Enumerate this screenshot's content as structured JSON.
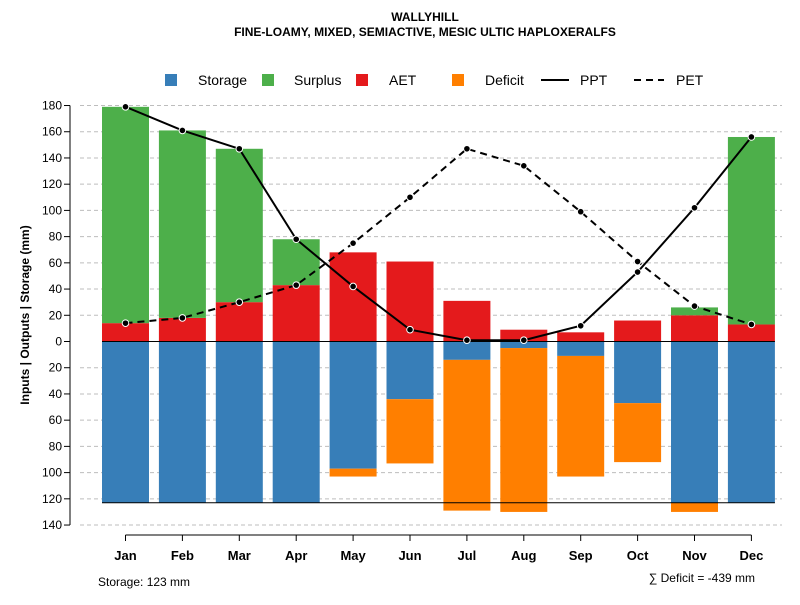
{
  "colors": {
    "storage": "#377eb8",
    "surplus": "#4daf4a",
    "aet": "#e41a1c",
    "deficit": "#ff7f00",
    "line": "#000000",
    "grid": "#bdbdbd"
  },
  "chart_data": {
    "type": "water-balance (stacked bar + line)",
    "title": "WALLYHILL",
    "subtitle": "FINE-LOAMY, MIXED, SEMIACTIVE, MESIC ULTIC HAPLOXERALFS",
    "ylabel": "Inputs | Outputs | Storage    (mm)",
    "ylim": [
      -140,
      180
    ],
    "yticks": [
      180,
      160,
      140,
      120,
      100,
      80,
      60,
      40,
      20,
      0,
      -20,
      -40,
      -60,
      -80,
      -100,
      -120,
      -140
    ],
    "ytick_labels": [
      "180",
      "160",
      "140",
      "120",
      "100",
      "80",
      "60",
      "40",
      "20",
      "0",
      "20",
      "40",
      "60",
      "80",
      "100",
      "120",
      "140"
    ],
    "grid": true,
    "legend_position": "top",
    "legend": [
      {
        "key": "storage",
        "label": "Storage",
        "kind": "box"
      },
      {
        "key": "surplus",
        "label": "Surplus",
        "kind": "box"
      },
      {
        "key": "aet",
        "label": "AET",
        "kind": "box"
      },
      {
        "key": "deficit",
        "label": "Deficit",
        "kind": "box"
      },
      {
        "key": "ppt",
        "label": "PPT",
        "kind": "solid"
      },
      {
        "key": "pet",
        "label": "PET",
        "kind": "dashed"
      }
    ],
    "categories": [
      "Jan",
      "Feb",
      "Mar",
      "Apr",
      "May",
      "Jun",
      "Jul",
      "Aug",
      "Sep",
      "Oct",
      "Nov",
      "Dec"
    ],
    "aet": [
      14,
      18,
      30,
      43,
      68,
      61,
      31,
      9,
      7,
      16,
      20,
      13
    ],
    "surplus": [
      165,
      143,
      117,
      35,
      0,
      0,
      0,
      0,
      0,
      0,
      6,
      143
    ],
    "storage": [
      123,
      123,
      123,
      123,
      97,
      44,
      14,
      5,
      11,
      47,
      123,
      123
    ],
    "deficit": [
      0,
      0,
      0,
      0,
      6,
      49,
      115,
      125,
      92,
      45,
      7,
      0
    ],
    "ppt": [
      179,
      161,
      147,
      78,
      42,
      9,
      1,
      1,
      12,
      53,
      102,
      156
    ],
    "pet": [
      14,
      18,
      30,
      43,
      75,
      110,
      147,
      134,
      99,
      61,
      27,
      13
    ],
    "storage_capacity": 123,
    "storage_note": "Storage: 123 mm",
    "deficit_note": "∑ Deficit = -439 mm"
  }
}
